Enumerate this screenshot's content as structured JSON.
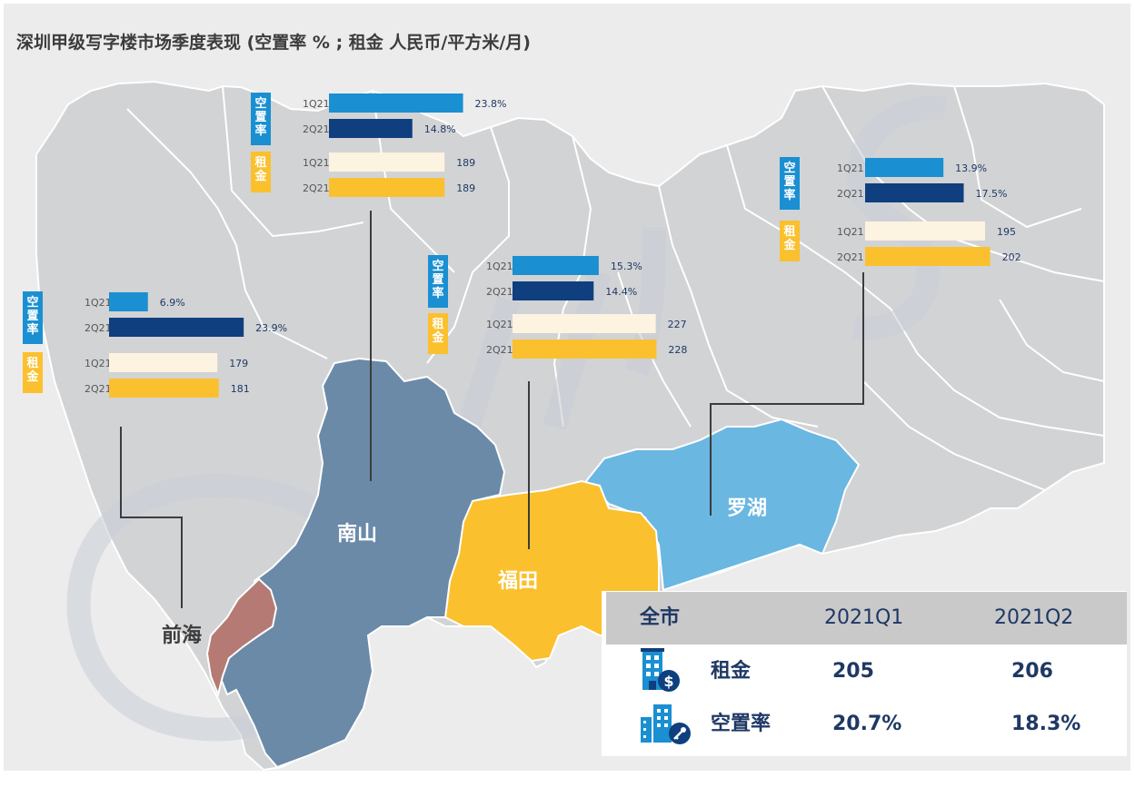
{
  "title": "深圳甲级写字楼市场季度表现 (空置率 % ; 租金 人民币/平方米/月)",
  "colors": {
    "map_gray": "#d2d3d5",
    "map_border": "#ffffff",
    "nanshan": "#6b8aa8",
    "futian": "#fbc02d",
    "luohu": "#6ab7e2",
    "qianhai": "#b57a73",
    "q1_vacancy": "#1a8fd1",
    "q2_vacancy": "#0f3f7e",
    "q1_rent": "#fdf3e1",
    "q2_rent": "#fbc02d",
    "tag_vacancy": "#1a8fd1",
    "tag_rent": "#fbc02d",
    "value_text": "#1f3864",
    "leader": "#3c3c3c"
  },
  "tags": {
    "vacancy": "空置率",
    "rent": "租金"
  },
  "districts": [
    {
      "name": "前海",
      "color": "#3c3c3c"
    },
    {
      "name": "南山",
      "color": "#ffffff"
    },
    {
      "name": "福田",
      "color": "#ffffff"
    },
    {
      "name": "罗湖",
      "color": "#ffffff"
    }
  ],
  "chart_data": [
    {
      "type": "bar",
      "district": "前海",
      "categories": [
        "1Q21",
        "2Q21"
      ],
      "series": [
        {
          "name": "空置率",
          "values": [
            6.9,
            23.9
          ],
          "labels": [
            "6.9%",
            "23.9%"
          ]
        },
        {
          "name": "租金",
          "values": [
            179,
            181
          ],
          "labels": [
            "179",
            "181"
          ]
        }
      ]
    },
    {
      "type": "bar",
      "district": "南山",
      "categories": [
        "1Q21",
        "2Q21"
      ],
      "series": [
        {
          "name": "空置率",
          "values": [
            23.8,
            14.8
          ],
          "labels": [
            "23.8%",
            "14.8%"
          ]
        },
        {
          "name": "租金",
          "values": [
            189,
            189
          ],
          "labels": [
            "189",
            "189"
          ]
        }
      ]
    },
    {
      "type": "bar",
      "district": "福田",
      "categories": [
        "1Q21",
        "2Q21"
      ],
      "series": [
        {
          "name": "空置率",
          "values": [
            15.3,
            14.4
          ],
          "labels": [
            "15.3%",
            "14.4%"
          ]
        },
        {
          "name": "租金",
          "values": [
            227,
            228
          ],
          "labels": [
            "227",
            "228"
          ]
        }
      ]
    },
    {
      "type": "bar",
      "district": "罗湖",
      "categories": [
        "1Q21",
        "2Q21"
      ],
      "series": [
        {
          "name": "空置率",
          "values": [
            13.9,
            17.5
          ],
          "labels": [
            "13.9%",
            "17.5%"
          ]
        },
        {
          "name": "租金",
          "values": [
            195,
            202
          ],
          "labels": [
            "195",
            "202"
          ]
        }
      ]
    },
    {
      "type": "table",
      "columns": [
        "全市",
        "2021Q1",
        "2021Q2"
      ],
      "rows": [
        {
          "metric": "租金",
          "icon": "building-dollar-icon",
          "values": [
            "205",
            "206"
          ]
        },
        {
          "metric": "空置率",
          "icon": "building-key-icon",
          "values": [
            "20.7%",
            "18.3%"
          ]
        }
      ]
    }
  ]
}
